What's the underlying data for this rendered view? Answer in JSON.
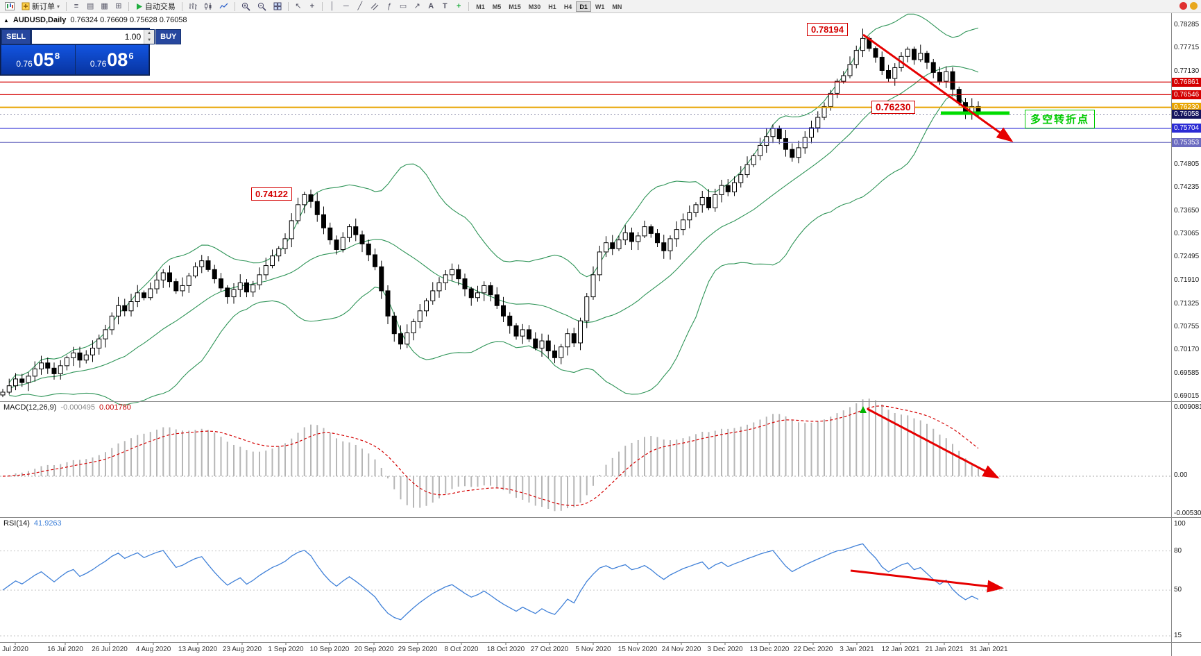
{
  "toolbar": {
    "new_order": "新订单",
    "autotrading": "自动交易",
    "timeframes": [
      "M1",
      "M5",
      "M15",
      "M30",
      "H1",
      "H4",
      "D1",
      "W1",
      "MN"
    ],
    "active_timeframe": "D1"
  },
  "trade_panel": {
    "sell_label": "SELL",
    "buy_label": "BUY",
    "volume": "1.00",
    "sell_price": {
      "prefix": "0.76",
      "main": "05",
      "sup": "8"
    },
    "buy_price": {
      "prefix": "0.76",
      "main": "08",
      "sup": "6"
    }
  },
  "symbol_header": {
    "symbol": "AUDUSD,Daily",
    "ohlc": "0.76324 0.76609 0.75628 0.76058"
  },
  "price_axis": {
    "ticks": [
      "0.78285",
      "0.77715",
      "0.77130",
      "0.74805",
      "0.74235",
      "0.73650",
      "0.73065",
      "0.72495",
      "0.71910",
      "0.71325",
      "0.70755",
      "0.70170",
      "0.69585",
      "0.69015"
    ],
    "lines": [
      {
        "price": 0.76861,
        "label": "0.76861",
        "color": "#d40000"
      },
      {
        "price": 0.76546,
        "label": "0.76546",
        "color": "#d40000"
      },
      {
        "price": 0.7623,
        "label": "0.76230",
        "color": "#e8a400"
      },
      {
        "price": 0.75704,
        "label": "0.75704",
        "color": "#2b2bd4"
      },
      {
        "price": 0.75353,
        "label": "0.75353",
        "color": "#6b6bc0"
      }
    ],
    "current": {
      "price": 0.76058,
      "label": "0.76058",
      "color": "#15155e"
    }
  },
  "macd_panel": {
    "title": "MACD(12,26,9)",
    "value": "-0.000495",
    "signal_value": "0.001780",
    "scale": [
      "0.009081",
      "0.00",
      "-0.005306"
    ]
  },
  "rsi_panel": {
    "title": "RSI(14)",
    "value": "41.9263",
    "scale": [
      "100",
      "80",
      "50",
      "15"
    ]
  },
  "annotations": {
    "peak_price": "0.78194",
    "level_price": "0.76230",
    "left_peak_price": "0.74122",
    "cn_note": "多空转折点"
  },
  "chart_data": {
    "type": "candlestick",
    "symbol": "AUDUSD",
    "timeframe": "Daily",
    "title": "AUDUSD,Daily 0.76324 0.76609 0.75628 0.76058",
    "price_range": [
      0.69015,
      0.78285
    ],
    "overlays": [
      "Bollinger Bands (green)"
    ],
    "indicators": [
      {
        "name": "MACD(12,26,9)",
        "main": -0.000495,
        "signal": 0.00178,
        "scale_max": 0.009081,
        "scale_min": -0.005306
      },
      {
        "name": "RSI(14)",
        "value": 41.9263
      }
    ],
    "key_levels": [
      0.78194,
      0.76861,
      0.76546,
      0.7623,
      0.76058,
      0.75704,
      0.75353,
      0.74122
    ],
    "x_labels": [
      "Jul 2020",
      "16 Jul 2020",
      "26 Jul 2020",
      "4 Aug 2020",
      "13 Aug 2020",
      "23 Aug 2020",
      "1 Sep 2020",
      "10 Sep 2020",
      "20 Sep 2020",
      "29 Sep 2020",
      "8 Oct 2020",
      "18 Oct 2020",
      "27 Oct 2020",
      "5 Nov 2020",
      "15 Nov 2020",
      "24 Nov 2020",
      "3 Dec 2020",
      "13 Dec 2020",
      "22 Dec 2020",
      "3 Jan 2021",
      "12 Jan 2021",
      "21 Jan 2021",
      "31 Jan 2021"
    ],
    "closes": [
      0.6912,
      0.6928,
      0.6945,
      0.6936,
      0.6952,
      0.697,
      0.6985,
      0.6972,
      0.6958,
      0.6978,
      0.6998,
      0.701,
      0.6992,
      0.7005,
      0.7022,
      0.7045,
      0.7068,
      0.7102,
      0.7128,
      0.7115,
      0.7138,
      0.716,
      0.7148,
      0.717,
      0.7192,
      0.721,
      0.7188,
      0.7165,
      0.7178,
      0.7202,
      0.7225,
      0.724,
      0.7218,
      0.7195,
      0.7172,
      0.715,
      0.7168,
      0.7185,
      0.7162,
      0.718,
      0.7205,
      0.7228,
      0.7252,
      0.727,
      0.7295,
      0.734,
      0.738,
      0.7405,
      0.7388,
      0.7355,
      0.7322,
      0.7292,
      0.7268,
      0.7298,
      0.7325,
      0.7305,
      0.7282,
      0.7255,
      0.7225,
      0.7165,
      0.7102,
      0.7058,
      0.7032,
      0.706,
      0.7088,
      0.7115,
      0.714,
      0.7165,
      0.7185,
      0.7205,
      0.7218,
      0.7195,
      0.717,
      0.7148,
      0.716,
      0.7178,
      0.7155,
      0.7128,
      0.7102,
      0.7078,
      0.7052,
      0.7068,
      0.7045,
      0.7022,
      0.704,
      0.7015,
      0.6998,
      0.7025,
      0.7058,
      0.7035,
      0.709,
      0.715,
      0.7205,
      0.7262,
      0.7285,
      0.727,
      0.7292,
      0.731,
      0.7288,
      0.7302,
      0.7325,
      0.7308,
      0.7285,
      0.7265,
      0.7295,
      0.7318,
      0.7342,
      0.736,
      0.738,
      0.7398,
      0.7372,
      0.7405,
      0.7428,
      0.7412,
      0.7435,
      0.7455,
      0.748,
      0.7502,
      0.7528,
      0.755,
      0.757,
      0.7545,
      0.7518,
      0.7498,
      0.7522,
      0.7548,
      0.7572,
      0.7598,
      0.7625,
      0.7658,
      0.7688,
      0.7702,
      0.773,
      0.7765,
      0.7795,
      0.777,
      0.7748,
      0.7715,
      0.7695,
      0.7722,
      0.775,
      0.7768,
      0.7742,
      0.7758,
      0.7735,
      0.771,
      0.7688,
      0.7712,
      0.7668,
      0.7635,
      0.7608,
      0.7625,
      0.7606
    ]
  }
}
